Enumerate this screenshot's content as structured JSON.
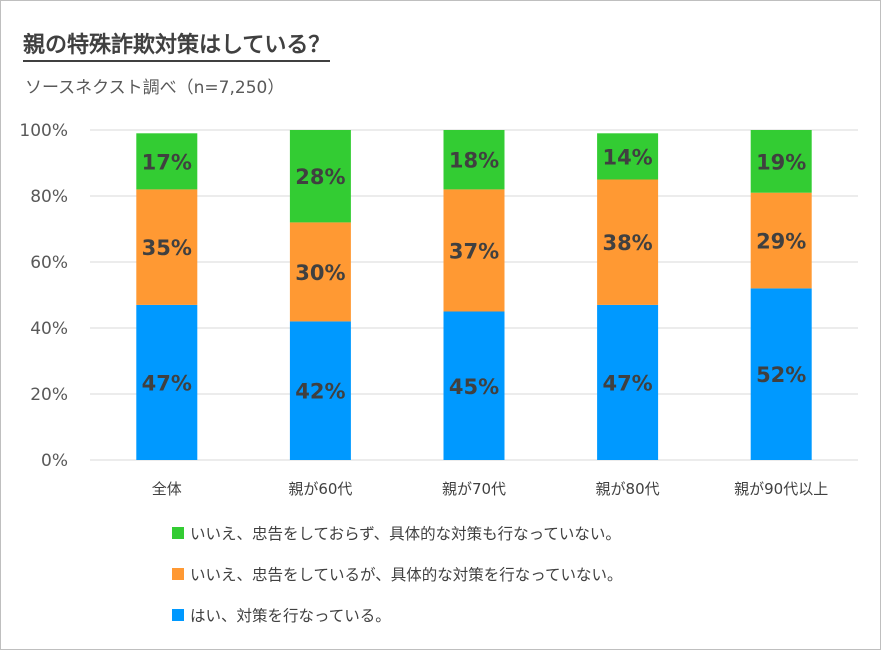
{
  "title": "親の特殊詐欺対策はしている？",
  "subtitle": "ソースネクスト調べ（n=7,250）",
  "chart_data": {
    "type": "bar",
    "stacked": true,
    "percent_stacked": true,
    "categories": [
      "全体",
      "親が60代",
      "親が70代",
      "親が80代",
      "親が90代以上"
    ],
    "series": [
      {
        "name": "はい、対策を行なっている。",
        "values": [
          47,
          42,
          45,
          47,
          52
        ],
        "color": "#0099ff"
      },
      {
        "name": "いいえ、忠告をしているが、具体的な対策を行なっていない。",
        "values": [
          35,
          30,
          37,
          38,
          29
        ],
        "color": "#ff9933"
      },
      {
        "name": "いいえ、忠告をしておらず、具体的な対策も行なっていない。",
        "values": [
          17,
          28,
          18,
          14,
          19
        ],
        "color": "#33cc33"
      }
    ],
    "data_labels": [
      [
        "47%",
        "42%",
        "45%",
        "47%",
        "52%"
      ],
      [
        "35%",
        "30%",
        "37%",
        "38%",
        "29%"
      ],
      [
        "17%",
        "28%",
        "18%",
        "14%",
        "19%"
      ]
    ],
    "yticks": [
      "0%",
      "20%",
      "40%",
      "60%",
      "80%",
      "100%"
    ],
    "ylim": [
      0,
      100
    ],
    "grid": true,
    "legend": [
      "いいえ、忠告をしておらず、具体的な対策も行なっていない。",
      "いいえ、忠告をしているが、具体的な対策を行なっていない。",
      "はい、対策を行なっている。"
    ],
    "legend_position": "bottom"
  },
  "colors": {
    "yes": "#0099ff",
    "warned": "#ff9933",
    "none": "#33cc33",
    "label": "#404040",
    "grid": "#d9d9d9"
  }
}
